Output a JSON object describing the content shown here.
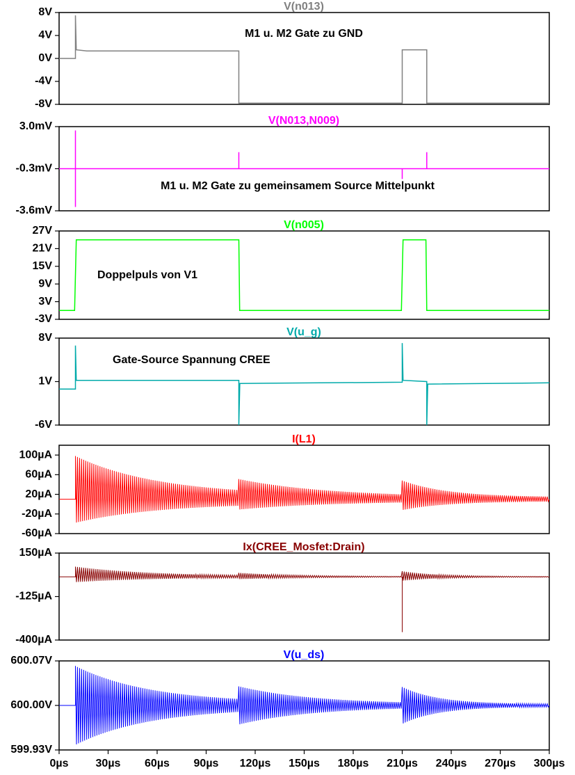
{
  "chart_data": {
    "type": "line",
    "x_axis": {
      "range": [
        0,
        300
      ],
      "unit": "µs",
      "tick_labels": [
        "0µs",
        "30µs",
        "60µs",
        "90µs",
        "120µs",
        "150µs",
        "180µs",
        "210µs",
        "240µs",
        "270µs",
        "300µs"
      ]
    },
    "panels": [
      {
        "title": "V(n013)",
        "color": "#808080",
        "ylim": [
          -8,
          8
        ],
        "y_tick_labels": [
          "8V",
          "4V",
          "0V",
          "-4V",
          "-8V"
        ],
        "annotation": "M1 u. M2 Gate zu GND",
        "waveform": "step",
        "points": [
          [
            0,
            0
          ],
          [
            10,
            0
          ],
          [
            10,
            7.5
          ],
          [
            10.5,
            1.5
          ],
          [
            17,
            1.3
          ],
          [
            110,
            1.3
          ],
          [
            110,
            -7.8
          ],
          [
            210,
            -7.8
          ],
          [
            210,
            1.5
          ],
          [
            225,
            1.5
          ],
          [
            225,
            -7.8
          ],
          [
            300,
            -7.8
          ]
        ]
      },
      {
        "title": "V(N013,N009)",
        "color": "#ff00ff",
        "ylim": [
          -3.6,
          3.0
        ],
        "y_tick_labels": [
          "3.0mV",
          "-0.3mV",
          "-3.6mV"
        ],
        "annotation": "M1 u. M2 Gate zu gemeinsamem Source Mittelpunkt",
        "waveform": "baseline_spikes",
        "baseline": -0.3,
        "spikes": [
          [
            10,
            2.7
          ],
          [
            10,
            -3.3
          ],
          [
            110,
            1.0
          ],
          [
            210,
            -1.1
          ],
          [
            225,
            1.0
          ]
        ]
      },
      {
        "title": "V(n005)",
        "color": "#00ff00",
        "ylim": [
          -3,
          27
        ],
        "y_tick_labels": [
          "27V",
          "21V",
          "15V",
          "9V",
          "3V",
          "-3V"
        ],
        "annotation": "Doppelpuls von V1",
        "waveform": "step",
        "points": [
          [
            0,
            0
          ],
          [
            9.5,
            0
          ],
          [
            10.5,
            24
          ],
          [
            110,
            24
          ],
          [
            110.5,
            0
          ],
          [
            209.5,
            0
          ],
          [
            210.5,
            24
          ],
          [
            224.5,
            24
          ],
          [
            225,
            0
          ],
          [
            300,
            0
          ]
        ]
      },
      {
        "title": "V(u_g)",
        "color": "#00aaaa",
        "ylim": [
          -6,
          8
        ],
        "y_tick_labels": [
          "8V",
          "1V",
          "-6V"
        ],
        "annotation": "Gate-Source Spannung CREE",
        "waveform": "step",
        "points": [
          [
            0,
            -0.2
          ],
          [
            10,
            -0.2
          ],
          [
            10,
            6.8
          ],
          [
            10.5,
            1.2
          ],
          [
            110,
            1.2
          ],
          [
            110,
            -6
          ],
          [
            110.6,
            0.7
          ],
          [
            210,
            0.9
          ],
          [
            210,
            7.2
          ],
          [
            210.5,
            1.2
          ],
          [
            225,
            1.0
          ],
          [
            225,
            -6
          ],
          [
            225.6,
            0.6
          ],
          [
            300,
            0.8
          ]
        ]
      },
      {
        "title": "I(L1)",
        "color": "#ff0000",
        "ylim": [
          -60,
          120
        ],
        "y_tick_labels": [
          "100µA",
          "60µA",
          "20µA",
          "-20µA",
          "-60µA"
        ],
        "annotation": "",
        "waveform": "ringing",
        "baseline": 10,
        "bursts": [
          {
            "start": 10,
            "end": 110,
            "amp": 60,
            "decay": 50,
            "center_shift": 20,
            "floor": 8
          },
          {
            "start": 110,
            "end": 210,
            "amp": 27,
            "decay": 55,
            "center_shift": 10,
            "floor": 4
          },
          {
            "start": 210,
            "end": 300,
            "amp": 26,
            "decay": 28,
            "center_shift": 8,
            "floor": 4
          }
        ]
      },
      {
        "title": "Ix(CREE_Mosfet:Drain)",
        "color": "#880000",
        "ylim": [
          -400,
          150
        ],
        "y_tick_labels": [
          "150µA",
          "-125µA",
          "-400µA"
        ],
        "annotation": "",
        "waveform": "ringing",
        "baseline": 0,
        "bursts": [
          {
            "start": 10,
            "end": 110,
            "amp": 45,
            "decay": 45,
            "center_shift": 15,
            "floor": 4
          },
          {
            "start": 110,
            "end": 210,
            "amp": 18,
            "decay": 35,
            "center_shift": 5,
            "floor": 2
          },
          {
            "start": 210,
            "end": 300,
            "amp": 28,
            "decay": 22,
            "center_shift": 5,
            "floor": 2
          }
        ],
        "spikes": [
          [
            210,
            -350
          ]
        ]
      },
      {
        "title": "V(u_ds)",
        "color": "#0000ff",
        "ylim": [
          599.93,
          600.07
        ],
        "y_tick_labels": [
          "600.07V",
          "600.00V",
          "599.93V"
        ],
        "annotation": "",
        "waveform": "ringing",
        "baseline": 600.0,
        "bursts": [
          {
            "start": 10,
            "end": 110,
            "amp": 0.058,
            "decay": 45,
            "center_shift": 0,
            "floor": 0.004
          },
          {
            "start": 110,
            "end": 210,
            "amp": 0.028,
            "decay": 45,
            "center_shift": 0,
            "floor": 0.002
          },
          {
            "start": 210,
            "end": 300,
            "amp": 0.027,
            "decay": 22,
            "center_shift": 0,
            "floor": 0.002
          }
        ]
      }
    ]
  }
}
